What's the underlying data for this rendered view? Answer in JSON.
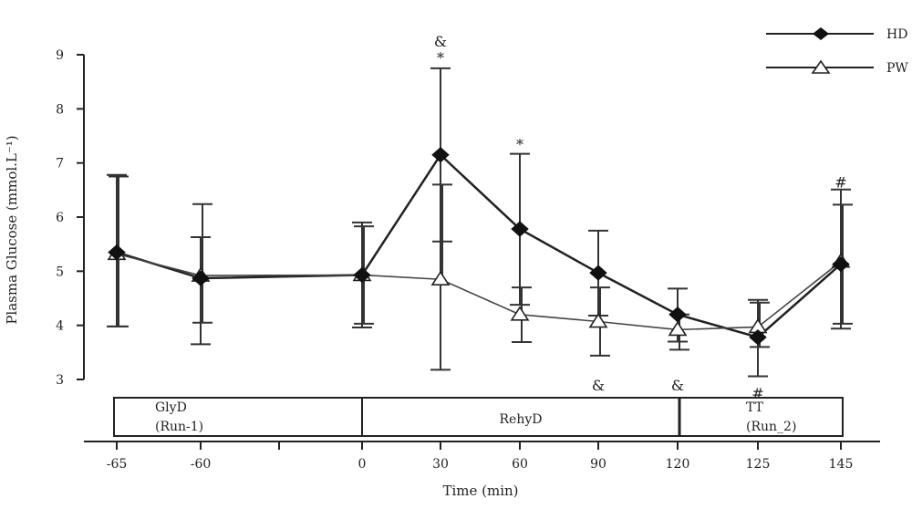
{
  "chart_data": {
    "type": "line",
    "title": "",
    "xlabel": "Time (min)",
    "ylabel": "Plasma Glucose (mmol.L⁻¹)",
    "ylim": [
      3,
      9
    ],
    "yticks": [
      "3",
      "4",
      "5",
      "6",
      "7",
      "8",
      "9"
    ],
    "categories": [
      "-65",
      "-60",
      "",
      "0",
      "30",
      "60",
      "90",
      "120",
      "125",
      "145"
    ],
    "grid": false,
    "legend_position": "top-right",
    "series": [
      {
        "name": "HD",
        "marker": "filled-diamond",
        "color": "#111111",
        "points": [
          {
            "x": "-65",
            "y": 5.35,
            "err_low": 3.98,
            "err_high": 6.78
          },
          {
            "x": "-60",
            "y": 4.87,
            "err_low": 3.65,
            "err_high": 5.63
          },
          {
            "x": "0",
            "y": 4.93,
            "err_low": 3.96,
            "err_high": 5.9
          },
          {
            "x": "30",
            "y": 7.15,
            "err_low": 3.18,
            "err_high": 8.75
          },
          {
            "x": "60",
            "y": 5.78,
            "err_low": 4.38,
            "err_high": 7.17
          },
          {
            "x": "90",
            "y": 4.97,
            "err_low": 4.18,
            "err_high": 5.75
          },
          {
            "x": "120",
            "y": 4.2,
            "err_low": 3.7,
            "err_high": 4.68
          },
          {
            "x": "125",
            "y": 3.78,
            "err_low": 3.06,
            "err_high": 4.47
          },
          {
            "x": "145",
            "y": 5.13,
            "err_low": 3.94,
            "err_high": 6.51
          }
        ]
      },
      {
        "name": "PW",
        "marker": "open-triangle",
        "color": "#111111",
        "points": [
          {
            "x": "-65",
            "y": 5.32,
            "err_low": 3.98,
            "err_high": 6.75
          },
          {
            "x": "-60",
            "y": 4.92,
            "err_low": 4.05,
            "err_high": 6.24
          },
          {
            "x": "0",
            "y": 4.93,
            "err_low": 4.03,
            "err_high": 5.83
          },
          {
            "x": "30",
            "y": 4.85,
            "err_low": 5.55,
            "err_high": 6.6
          },
          {
            "x": "60",
            "y": 4.2,
            "err_low": 3.69,
            "err_high": 4.7
          },
          {
            "x": "90",
            "y": 4.07,
            "err_low": 3.44,
            "err_high": 4.7
          },
          {
            "x": "120",
            "y": 3.92,
            "err_low": 3.55,
            "err_high": 4.2
          },
          {
            "x": "125",
            "y": 3.97,
            "err_low": 3.6,
            "err_high": 4.42
          },
          {
            "x": "145",
            "y": 5.18,
            "err_low": 4.03,
            "err_high": 6.23
          }
        ]
      }
    ],
    "annotations": [
      {
        "text": "&",
        "x": "30",
        "y": 9.25
      },
      {
        "text": "*",
        "x": "30",
        "y": 8.95
      },
      {
        "text": "*",
        "x": "60",
        "y": 7.35
      },
      {
        "text": "&",
        "x": "90",
        "y": 2.9
      },
      {
        "text": "&",
        "x": "120",
        "y": 2.9
      },
      {
        "text": "#",
        "x": "125",
        "y": 2.75
      },
      {
        "text": "#",
        "x": "145",
        "y": 6.65
      }
    ],
    "phases": [
      {
        "label_line1": "GlyD",
        "label_line2": "(Run-1)",
        "from": "-65",
        "to": "0"
      },
      {
        "label_line1": "RehyD",
        "label_line2": "",
        "from": "0",
        "to": "120"
      },
      {
        "label_line1": "TT",
        "label_line2": "(Run_2)",
        "from": "120",
        "to": "145"
      }
    ]
  }
}
